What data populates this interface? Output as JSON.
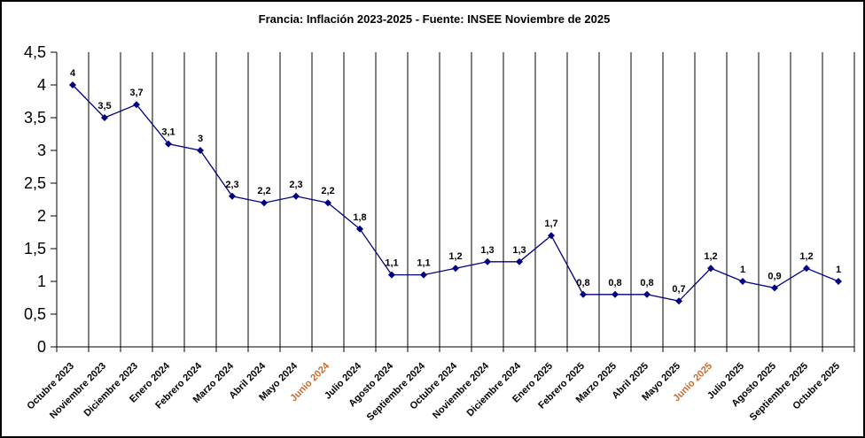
{
  "window": {
    "background_color": "#FFFFFF",
    "border_color": "#000000"
  },
  "chart_data": {
    "type": "line",
    "title": "Francia: Inflación 2023-2025 - Fuente: INSEE Noviembre de 2025",
    "xlabel": "",
    "ylabel": "",
    "ylim": [
      0,
      4.5
    ],
    "y_tick_interval": 0.5,
    "y_tick_labels": [
      "0",
      "0,5",
      "1",
      "1,5",
      "2",
      "2,5",
      "3",
      "3,5",
      "4",
      "4,5"
    ],
    "grid": "vertical-only",
    "legend_position": "none",
    "decimal_separator": ",",
    "categories": [
      "Octubre 2023",
      "Noviembre 2023",
      "Diciembre 2023",
      "Enero 2024",
      "Febrero 2024",
      "Marzo 2024",
      "Abril 2024",
      "Mayo 2024",
      "Junio 2024",
      "Julio 2024",
      "Agosto 2024",
      "Septiembre 2024",
      "Octubre 2024",
      "Noviembre 2024",
      "Diciembre 2024",
      "Enero 2025",
      "Febrero 2025",
      "Marzo 2025",
      "Abril 2025",
      "Mayo 2025",
      "Junio 2025",
      "Julio 2025",
      "Agosto 2025",
      "Septiembre 2025",
      "Octubre 2025"
    ],
    "values": [
      4,
      3.5,
      3.7,
      3.1,
      3,
      2.3,
      2.2,
      2.3,
      2.2,
      1.8,
      1.1,
      1.1,
      1.2,
      1.3,
      1.3,
      1.7,
      0.8,
      0.8,
      0.8,
      0.7,
      1.2,
      1,
      0.9,
      1.2,
      1
    ],
    "data_labels": [
      "4",
      "3,5",
      "3,7",
      "3,1",
      "3",
      "2,3",
      "2,2",
      "2,3",
      "2,2",
      "1,8",
      "1,1",
      "1,1",
      "1,2",
      "1,3",
      "1,3",
      "1,7",
      "0,8",
      "0,8",
      "0,8",
      "0,7",
      "1,2",
      "1",
      "0,9",
      "1,2",
      "1"
    ],
    "series_color": "#000080",
    "marker_shape": "diamond",
    "highlight_categories": [
      "Junio 2024",
      "Junio 2025"
    ],
    "highlight_label_color": "#C96A2A",
    "category_label_color": "#000000",
    "data_label_color": "#000000"
  }
}
